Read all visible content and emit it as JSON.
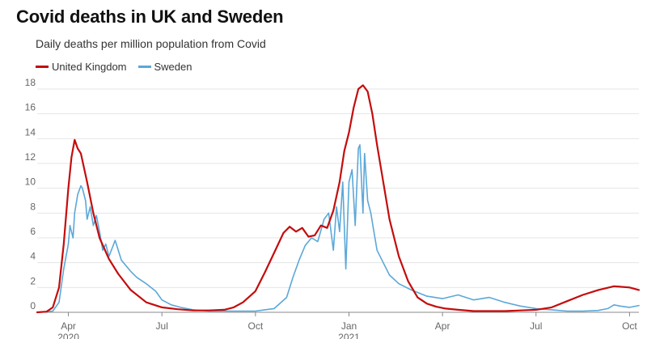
{
  "header": {
    "title": "Covid deaths in UK and Sweden",
    "subtitle": "Daily deaths per million population from Covid"
  },
  "colors": {
    "uk": "#c40c0c",
    "sweden": "#5ba8d8",
    "grid": "#e4e4e4",
    "axis": "#888888"
  },
  "chart_data": {
    "type": "line",
    "title": "Covid deaths in UK and Sweden",
    "subtitle": "Daily deaths per million population from Covid",
    "xlabel": "",
    "ylabel": "",
    "x_unit": "months since Jan 2020",
    "xlim": [
      2.0,
      21.3
    ],
    "ylim": [
      0,
      18
    ],
    "yticks": [
      0,
      2,
      4,
      6,
      8,
      10,
      12,
      14,
      16,
      18
    ],
    "xticks": [
      {
        "x": 3,
        "label": "Apr",
        "sub": "2020"
      },
      {
        "x": 6,
        "label": "Jul",
        "sub": ""
      },
      {
        "x": 9,
        "label": "Oct",
        "sub": ""
      },
      {
        "x": 12,
        "label": "Jan",
        "sub": "2021"
      },
      {
        "x": 15,
        "label": "Apr",
        "sub": ""
      },
      {
        "x": 18,
        "label": "Jul",
        "sub": ""
      },
      {
        "x": 21,
        "label": "Oct",
        "sub": ""
      }
    ],
    "legend_position": "top-left",
    "grid": true,
    "series": [
      {
        "name": "United Kingdom",
        "x": [
          2.0,
          2.3,
          2.5,
          2.7,
          2.85,
          3.0,
          3.1,
          3.2,
          3.3,
          3.4,
          3.6,
          3.8,
          4.0,
          4.3,
          4.6,
          5.0,
          5.5,
          6.0,
          6.5,
          7.0,
          7.5,
          8.0,
          8.3,
          8.6,
          9.0,
          9.3,
          9.6,
          9.9,
          10.1,
          10.3,
          10.5,
          10.7,
          10.9,
          11.1,
          11.3,
          11.5,
          11.7,
          11.85,
          12.0,
          12.15,
          12.3,
          12.45,
          12.6,
          12.75,
          12.9,
          13.1,
          13.3,
          13.6,
          13.9,
          14.2,
          14.5,
          14.8,
          15.1,
          15.5,
          16.0,
          16.5,
          17.0,
          17.5,
          18.0,
          18.5,
          19.0,
          19.5,
          20.0,
          20.5,
          21.0,
          21.3
        ],
        "values": [
          0.0,
          0.05,
          0.4,
          2.0,
          5.5,
          10.0,
          12.5,
          13.9,
          13.2,
          12.8,
          10.5,
          8.0,
          6.0,
          4.3,
          3.1,
          1.8,
          0.8,
          0.4,
          0.25,
          0.15,
          0.15,
          0.2,
          0.4,
          0.8,
          1.7,
          3.2,
          4.8,
          6.4,
          6.9,
          6.5,
          6.8,
          6.1,
          6.2,
          7.0,
          6.8,
          8.2,
          10.5,
          13.0,
          14.5,
          16.5,
          18.0,
          18.3,
          17.8,
          16.0,
          13.5,
          10.5,
          7.5,
          4.5,
          2.5,
          1.2,
          0.7,
          0.45,
          0.3,
          0.2,
          0.1,
          0.1,
          0.1,
          0.15,
          0.2,
          0.4,
          0.9,
          1.4,
          1.8,
          2.1,
          2.0,
          1.8
        ]
      },
      {
        "name": "Sweden",
        "x": [
          2.0,
          2.5,
          2.7,
          2.85,
          3.0,
          3.05,
          3.15,
          3.2,
          3.3,
          3.4,
          3.45,
          3.55,
          3.6,
          3.7,
          3.8,
          3.9,
          4.0,
          4.1,
          4.2,
          4.3,
          4.5,
          4.7,
          4.9,
          5.0,
          5.2,
          5.5,
          5.8,
          6.0,
          6.3,
          6.6,
          7.0,
          7.5,
          8.0,
          8.5,
          9.0,
          9.3,
          9.6,
          10.0,
          10.2,
          10.4,
          10.6,
          10.8,
          11.0,
          11.2,
          11.35,
          11.5,
          11.6,
          11.7,
          11.8,
          11.9,
          12.0,
          12.1,
          12.2,
          12.3,
          12.35,
          12.45,
          12.5,
          12.6,
          12.7,
          12.8,
          12.9,
          13.1,
          13.3,
          13.6,
          14.0,
          14.5,
          15.0,
          15.5,
          16.0,
          16.5,
          17.0,
          17.5,
          18.0,
          18.5,
          19.0,
          19.5,
          20.0,
          20.3,
          20.5,
          20.7,
          21.0,
          21.3
        ],
        "values": [
          0.0,
          0.1,
          0.8,
          3.5,
          5.5,
          7.0,
          6.0,
          8.0,
          9.5,
          10.2,
          10.0,
          9.0,
          7.5,
          8.5,
          7.0,
          7.8,
          6.5,
          5.0,
          5.5,
          4.5,
          5.8,
          4.2,
          3.6,
          3.3,
          2.8,
          2.3,
          1.7,
          1.0,
          0.6,
          0.4,
          0.2,
          0.1,
          0.1,
          0.1,
          0.1,
          0.2,
          0.3,
          1.2,
          2.8,
          4.2,
          5.4,
          6.0,
          5.7,
          7.5,
          8.0,
          5.0,
          8.5,
          6.5,
          10.5,
          3.5,
          10.5,
          11.5,
          7.0,
          13.2,
          13.5,
          8.0,
          12.8,
          9.0,
          8.0,
          6.5,
          5.0,
          4.0,
          3.0,
          2.3,
          1.8,
          1.3,
          1.1,
          1.4,
          1.0,
          1.2,
          0.8,
          0.5,
          0.3,
          0.2,
          0.1,
          0.1,
          0.15,
          0.3,
          0.6,
          0.5,
          0.4,
          0.55
        ]
      }
    ]
  }
}
